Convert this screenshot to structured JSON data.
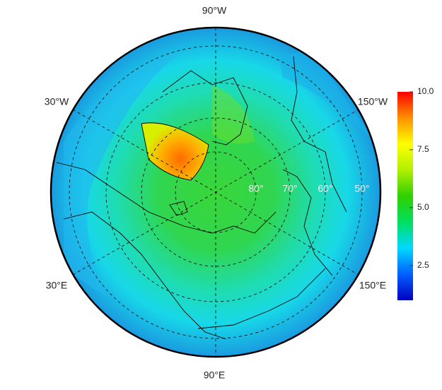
{
  "map": {
    "longitude_labels": [
      "90°W",
      "30°W",
      "150°W",
      "30°E",
      "150°E",
      "90°E"
    ],
    "latitude_labels": [
      "80°",
      "70°",
      "60°",
      "50°"
    ],
    "colorbar": {
      "lim": [
        1,
        10
      ],
      "ticks": [
        2.5,
        {
          "value": 5,
          "label": "5.0"
        },
        7.5,
        {
          "value": 10,
          "label": "10.0"
        }
      ],
      "colors": [
        "#0000c0",
        "#0060ff",
        "#00d8ff",
        "#00e060",
        "#30d000",
        "#b0f000",
        "#ffff00",
        "#ff9000",
        "#ff0000"
      ]
    }
  }
}
